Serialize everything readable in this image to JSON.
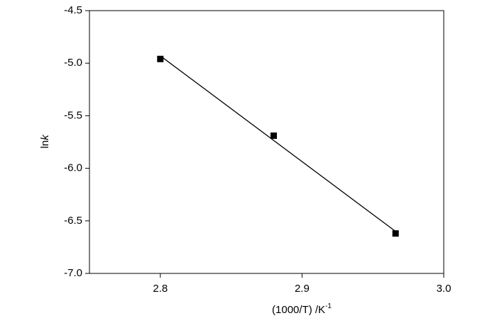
{
  "chart_data": {
    "type": "scatter",
    "x_label": {
      "text": "(1000/T) /K",
      "superscript": "-1"
    },
    "y_label": {
      "text": "ln",
      "italic": "k"
    },
    "series": [
      {
        "type": "scatter",
        "marker": "square",
        "color": "#000000",
        "x": [
          2.8,
          2.88,
          2.966
        ],
        "values": [
          -4.96,
          -5.69,
          -6.62
        ]
      },
      {
        "type": "line",
        "color": "#000000",
        "x": [
          2.801,
          2.966
        ],
        "values": [
          -4.94,
          -6.6
        ]
      }
    ],
    "xlim": [
      2.75,
      3.0
    ],
    "xticks": [
      2.8,
      2.9,
      {
        "value": 3.0,
        "label": "3.0"
      }
    ],
    "ylim": [
      -7.0,
      -4.5
    ],
    "yticks": [
      -4.5,
      {
        "value": -5.0,
        "label": "-5.0"
      },
      -5.5,
      {
        "value": -6.0,
        "label": "-6.0"
      },
      -6.5,
      {
        "value": -7.0,
        "label": "-7.0"
      }
    ],
    "grid": false,
    "frame": true
  }
}
